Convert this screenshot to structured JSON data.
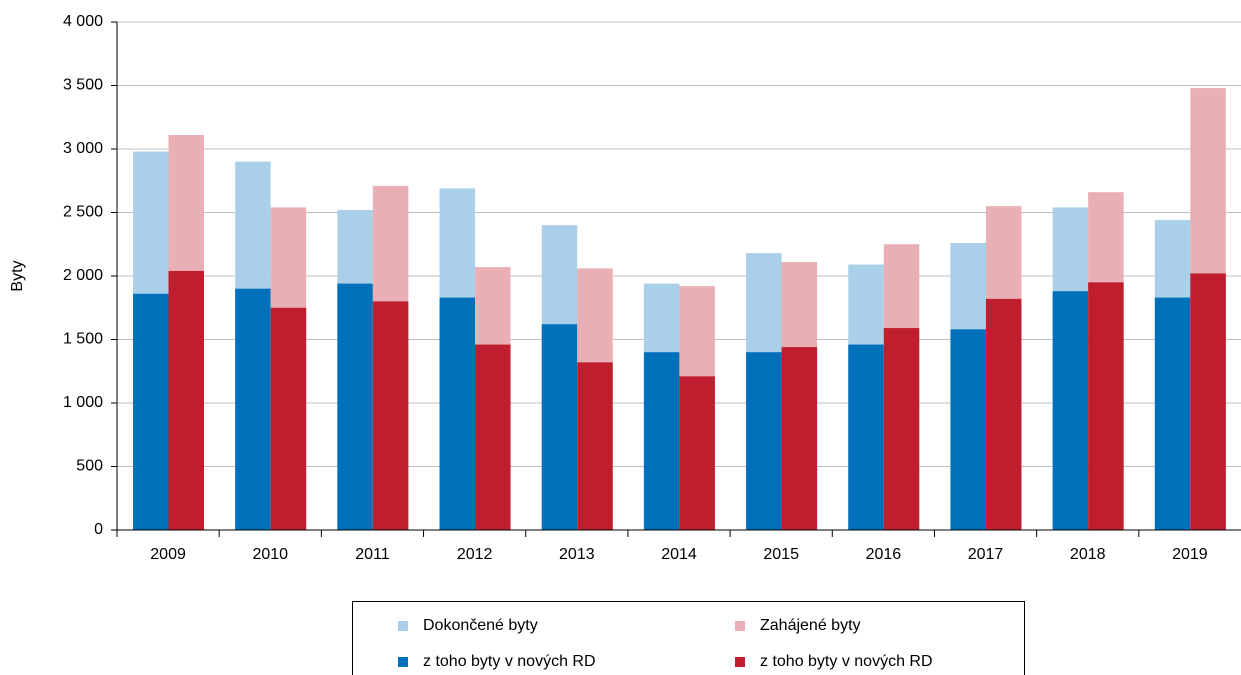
{
  "chart_data": {
    "type": "bar",
    "y_label": "Byty",
    "categories": [
      "2009",
      "2010",
      "2011",
      "2012",
      "2013",
      "2014",
      "2015",
      "2016",
      "2017",
      "2018",
      "2019"
    ],
    "series": [
      {
        "name": "Dokončené byty",
        "color": "#a9cfe9",
        "values": [
          2980,
          2900,
          2520,
          2690,
          2400,
          1940,
          2180,
          2090,
          2260,
          2540,
          2440
        ]
      },
      {
        "name": "z toho byty v nových RD",
        "color": "#0070bb",
        "values": [
          1860,
          1900,
          1940,
          1830,
          1620,
          1400,
          1400,
          1460,
          1580,
          1880,
          1830
        ]
      },
      {
        "name": "Zahájené byty",
        "color": "#e8b0b4",
        "values": [
          3110,
          2540,
          2710,
          2070,
          2060,
          1920,
          2110,
          2250,
          2550,
          2660,
          3480
        ]
      },
      {
        "name": "z toho byty v nových RD",
        "color": "#be1e2d",
        "values": [
          2040,
          1750,
          1800,
          1460,
          1320,
          1210,
          1440,
          1590,
          1820,
          1950,
          2020
        ]
      }
    ],
    "ylim": [
      0,
      4000
    ],
    "yticks": [
      0,
      500,
      {
        "value": 1000,
        "label": "1 000"
      },
      {
        "value": 1500,
        "label": "1 500"
      },
      {
        "value": 2000,
        "label": "2 000"
      },
      {
        "value": 2500,
        "label": "2 500"
      },
      {
        "value": 3000,
        "label": "3 000"
      },
      {
        "value": 3500,
        "label": "3 500"
      },
      {
        "value": 4000,
        "label": "4 000"
      }
    ],
    "grid": true
  }
}
